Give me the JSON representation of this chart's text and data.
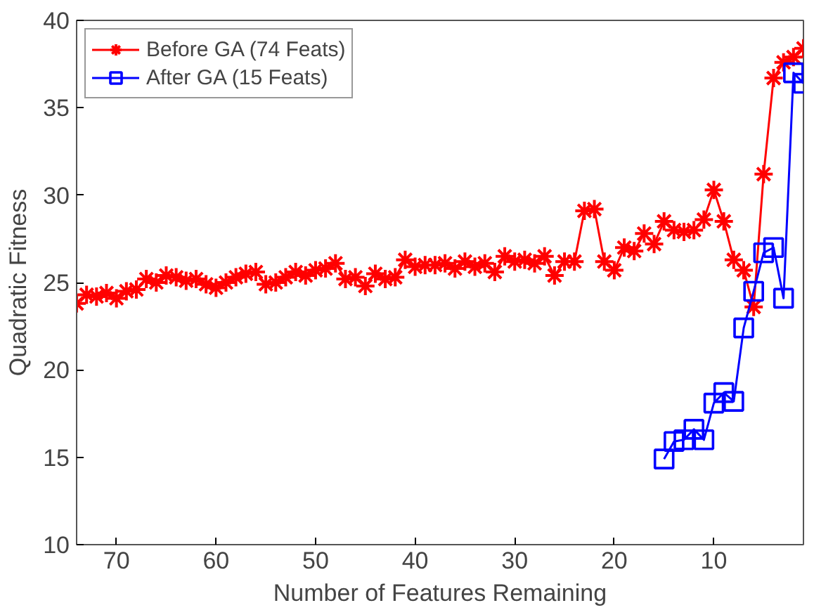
{
  "chart_data": {
    "type": "line",
    "xlabel": "Number of Features Remaining",
    "ylabel": "Quadratic Fitness",
    "xlim": [
      74,
      1
    ],
    "xticks": [
      70,
      60,
      50,
      40,
      30,
      20,
      10
    ],
    "ylim": [
      10,
      40
    ],
    "yticks": [
      10,
      15,
      20,
      25,
      30,
      35,
      40
    ],
    "grid": false,
    "legend": "top left",
    "line_style": "solid",
    "series": [
      {
        "name": "Before GA (74 Feats)",
        "color": "#ff0000",
        "marker": "cross",
        "x": [
          74,
          73,
          72,
          71,
          70,
          69,
          68,
          67,
          66,
          65,
          64,
          63,
          62,
          61,
          60,
          59,
          58,
          57,
          56,
          55,
          54,
          53,
          52,
          51,
          50,
          49,
          48,
          47,
          46,
          45,
          44,
          43,
          42,
          41,
          40,
          39,
          38,
          37,
          36,
          35,
          34,
          33,
          32,
          31,
          30,
          29,
          28,
          27,
          26,
          25,
          24,
          23,
          22,
          21,
          20,
          19,
          18,
          17,
          16,
          15,
          14,
          13,
          12,
          11,
          10,
          9,
          8,
          7,
          6,
          5,
          4,
          3,
          2,
          1
        ],
        "values": [
          23.8,
          24.3,
          24.2,
          24.4,
          24.1,
          24.5,
          24.6,
          25.2,
          25.0,
          25.4,
          25.3,
          25.1,
          25.2,
          24.9,
          24.7,
          25.0,
          25.3,
          25.5,
          25.6,
          24.9,
          25.0,
          25.3,
          25.6,
          25.4,
          25.7,
          25.8,
          26.1,
          25.2,
          25.3,
          24.8,
          25.5,
          25.2,
          25.3,
          26.3,
          25.9,
          26.0,
          26.0,
          26.1,
          25.8,
          26.2,
          25.9,
          26.1,
          25.6,
          26.5,
          26.2,
          26.3,
          26.1,
          26.5,
          25.4,
          26.2,
          26.2,
          29.1,
          29.2,
          26.2,
          25.7,
          27.0,
          26.8,
          27.8,
          27.2,
          28.5,
          28.0,
          27.9,
          28.0,
          28.6,
          30.3,
          28.5,
          26.3,
          25.7,
          23.6,
          31.2,
          36.7,
          37.6,
          37.9,
          38.4
        ]
      },
      {
        "name": "After GA (15 Feats)",
        "color": "#0000ff",
        "marker": "square",
        "x": [
          15,
          14,
          13,
          12,
          11,
          10,
          9,
          8,
          7,
          6,
          5,
          4,
          3,
          2,
          1
        ],
        "values": [
          14.9,
          15.9,
          16.0,
          16.6,
          16.0,
          18.1,
          18.7,
          18.2,
          22.4,
          24.5,
          26.7,
          27.0,
          24.1,
          37.0,
          36.4
        ]
      }
    ]
  }
}
